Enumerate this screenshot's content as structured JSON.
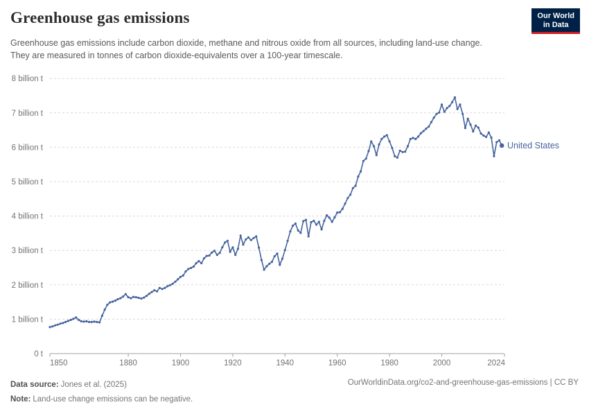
{
  "header": {
    "title": "Greenhouse gas emissions",
    "subtitle": "Greenhouse gas emissions include carbon dioxide, methane and nitrous oxide from all sources, including land-use change. They are measured in tonnes of carbon dioxide-equivalents over a 100-year timescale.",
    "logo": {
      "line1": "Our World",
      "line2": "in Data",
      "bg_color": "#002147",
      "accent_color": "#cf1d24"
    }
  },
  "chart_data": {
    "type": "line",
    "title": "Greenhouse gas emissions",
    "unit": "tonnes of carbon dioxide-equivalents",
    "xlim": [
      1850,
      2024
    ],
    "ylim": [
      0,
      8
    ],
    "grid": "horizontal-dashed",
    "legend_position": "end-of-line-label",
    "xticks": [
      1850,
      1880,
      1900,
      1920,
      1940,
      1960,
      1980,
      2000,
      2024
    ],
    "yticks": [
      0,
      1,
      2,
      3,
      4,
      5,
      6,
      7,
      8
    ],
    "ytick_labels": [
      "0 t",
      "1 billion t",
      "2 billion t",
      "3 billion t",
      "4 billion t",
      "5 billion t",
      "6 billion t",
      "7 billion t",
      "8 billion t"
    ],
    "line_color": "#44639c",
    "x": [
      1850,
      1851,
      1852,
      1853,
      1854,
      1855,
      1856,
      1857,
      1858,
      1859,
      1860,
      1861,
      1862,
      1863,
      1864,
      1865,
      1866,
      1867,
      1868,
      1869,
      1870,
      1871,
      1872,
      1873,
      1874,
      1875,
      1876,
      1877,
      1878,
      1879,
      1880,
      1881,
      1882,
      1883,
      1884,
      1885,
      1886,
      1887,
      1888,
      1889,
      1890,
      1891,
      1892,
      1893,
      1894,
      1895,
      1896,
      1897,
      1898,
      1899,
      1900,
      1901,
      1902,
      1903,
      1904,
      1905,
      1906,
      1907,
      1908,
      1909,
      1910,
      1911,
      1912,
      1913,
      1914,
      1915,
      1916,
      1917,
      1918,
      1919,
      1920,
      1921,
      1922,
      1923,
      1924,
      1925,
      1926,
      1927,
      1928,
      1929,
      1930,
      1931,
      1932,
      1933,
      1934,
      1935,
      1936,
      1937,
      1938,
      1939,
      1940,
      1941,
      1942,
      1943,
      1944,
      1945,
      1946,
      1947,
      1948,
      1949,
      1950,
      1951,
      1952,
      1953,
      1954,
      1955,
      1956,
      1957,
      1958,
      1959,
      1960,
      1961,
      1962,
      1963,
      1964,
      1965,
      1966,
      1967,
      1968,
      1969,
      1970,
      1971,
      1972,
      1973,
      1974,
      1975,
      1976,
      1977,
      1978,
      1979,
      1980,
      1981,
      1982,
      1983,
      1984,
      1985,
      1986,
      1987,
      1988,
      1989,
      1990,
      1991,
      1992,
      1993,
      1994,
      1995,
      1996,
      1997,
      1998,
      1999,
      2000,
      2001,
      2002,
      2003,
      2004,
      2005,
      2006,
      2007,
      2008,
      2009,
      2010,
      2011,
      2012,
      2013,
      2014,
      2015,
      2016,
      2017,
      2018,
      2019,
      2020,
      2021,
      2022,
      2023
    ],
    "series": [
      {
        "name": "United States",
        "color": "#44639c",
        "values": [
          0.77,
          0.79,
          0.82,
          0.84,
          0.87,
          0.89,
          0.92,
          0.95,
          0.98,
          1.01,
          1.05,
          0.98,
          0.94,
          0.93,
          0.94,
          0.92,
          0.92,
          0.93,
          0.92,
          0.91,
          1.1,
          1.28,
          1.42,
          1.49,
          1.51,
          1.54,
          1.58,
          1.61,
          1.66,
          1.73,
          1.64,
          1.61,
          1.65,
          1.64,
          1.62,
          1.6,
          1.63,
          1.68,
          1.74,
          1.79,
          1.84,
          1.81,
          1.91,
          1.88,
          1.91,
          1.96,
          1.99,
          2.03,
          2.09,
          2.16,
          2.23,
          2.27,
          2.39,
          2.46,
          2.49,
          2.53,
          2.63,
          2.69,
          2.63,
          2.77,
          2.84,
          2.85,
          2.94,
          2.99,
          2.87,
          2.93,
          3.09,
          3.23,
          3.28,
          2.96,
          3.09,
          2.87,
          3.05,
          3.43,
          3.17,
          3.32,
          3.38,
          3.3,
          3.36,
          3.41,
          3.08,
          2.72,
          2.44,
          2.54,
          2.61,
          2.67,
          2.83,
          2.91,
          2.58,
          2.76,
          3.01,
          3.28,
          3.55,
          3.72,
          3.78,
          3.58,
          3.51,
          3.85,
          3.89,
          3.41,
          3.82,
          3.86,
          3.75,
          3.83,
          3.61,
          3.86,
          4.02,
          3.95,
          3.83,
          3.96,
          4.1,
          4.11,
          4.21,
          4.36,
          4.52,
          4.62,
          4.81,
          4.88,
          5.15,
          5.3,
          5.6,
          5.67,
          5.89,
          6.17,
          6.03,
          5.77,
          6.08,
          6.24,
          6.31,
          6.35,
          6.17,
          5.98,
          5.74,
          5.7,
          5.9,
          5.86,
          5.87,
          6.03,
          6.24,
          6.27,
          6.24,
          6.31,
          6.41,
          6.47,
          6.54,
          6.6,
          6.73,
          6.86,
          6.97,
          7.01,
          7.24,
          7.03,
          7.14,
          7.2,
          7.31,
          7.45,
          7.11,
          7.24,
          6.97,
          6.56,
          6.83,
          6.66,
          6.46,
          6.63,
          6.57,
          6.4,
          6.34,
          6.3,
          6.43,
          6.28,
          5.74,
          6.15,
          6.2,
          6.05
        ]
      }
    ]
  },
  "footer": {
    "data_source_label": "Data source:",
    "data_source": "Jones et al. (2025)",
    "note_label": "Note:",
    "note": "Land-use change emissions can be negative.",
    "link": "OurWorldinData.org/co2-and-greenhouse-gas-emissions | CC BY"
  }
}
